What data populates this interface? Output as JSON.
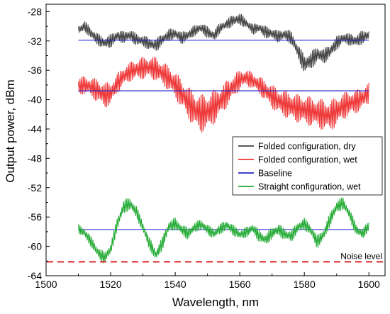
{
  "chart_data": {
    "type": "line",
    "xlabel": "Wavelength, nm",
    "ylabel": "Output power, dBm",
    "xlim": [
      1500,
      1605
    ],
    "ylim": [
      -64,
      -27
    ],
    "xticks": [
      1500,
      1520,
      1540,
      1560,
      1580,
      1600
    ],
    "yticks": [
      -64,
      -60,
      -56,
      -52,
      -48,
      -44,
      -40,
      -36,
      -32,
      -28
    ],
    "grid": false,
    "legend_position": "middle-right",
    "series": [
      {
        "name": "Folded configuration, dry",
        "color": "#404040",
        "x": [
          1510,
          1512,
          1514,
          1516,
          1518,
          1520,
          1522,
          1524,
          1526,
          1528,
          1530,
          1532,
          1534,
          1536,
          1538,
          1540,
          1542,
          1544,
          1546,
          1548,
          1550,
          1552,
          1554,
          1556,
          1558,
          1560,
          1562,
          1564,
          1566,
          1568,
          1570,
          1572,
          1574,
          1576,
          1578,
          1580,
          1582,
          1584,
          1586,
          1588,
          1590,
          1592,
          1594,
          1596,
          1598,
          1600
        ],
        "y": [
          -30.5,
          -30.0,
          -31.0,
          -31.8,
          -32.3,
          -32.0,
          -31.3,
          -31.5,
          -31.2,
          -31.8,
          -32.0,
          -32.4,
          -32.6,
          -31.8,
          -31.2,
          -31.0,
          -31.6,
          -31.2,
          -30.6,
          -30.2,
          -30.8,
          -31.3,
          -30.2,
          -29.7,
          -29.2,
          -29.0,
          -29.6,
          -30.4,
          -30.2,
          -30.8,
          -31.0,
          -31.4,
          -31.1,
          -31.6,
          -33.4,
          -35.2,
          -34.7,
          -33.8,
          -34.1,
          -33.4,
          -32.3,
          -31.6,
          -31.8,
          -32.0,
          -31.5,
          -31.2
        ],
        "amplitude": [
          0.7,
          0.7,
          0.8,
          0.8,
          0.8,
          0.9,
          0.8,
          0.8,
          0.8,
          0.8,
          0.8,
          0.8,
          0.9,
          0.8,
          0.8,
          0.8,
          0.8,
          0.8,
          0.7,
          0.7,
          0.8,
          0.8,
          0.7,
          0.7,
          0.8,
          0.8,
          0.7,
          0.7,
          0.7,
          0.8,
          0.8,
          0.8,
          0.8,
          0.9,
          1.0,
          1.3,
          1.2,
          1.1,
          1.0,
          1.0,
          0.9,
          0.8,
          0.8,
          0.9,
          0.9,
          0.8
        ]
      },
      {
        "name": "Folded configuration, wet",
        "color": "#ee3333",
        "x": [
          1510,
          1512,
          1514,
          1516,
          1518,
          1520,
          1522,
          1524,
          1526,
          1528,
          1530,
          1532,
          1534,
          1536,
          1538,
          1540,
          1542,
          1544,
          1546,
          1548,
          1550,
          1552,
          1554,
          1556,
          1558,
          1560,
          1562,
          1564,
          1566,
          1568,
          1570,
          1572,
          1574,
          1576,
          1578,
          1580,
          1582,
          1584,
          1586,
          1588,
          1590,
          1592,
          1594,
          1596,
          1598,
          1600
        ],
        "y": [
          -38.2,
          -38.0,
          -38.3,
          -38.8,
          -39.4,
          -39.2,
          -37.8,
          -36.8,
          -36.2,
          -35.9,
          -35.7,
          -35.6,
          -35.8,
          -36.4,
          -37.1,
          -38.0,
          -39.2,
          -40.4,
          -41.4,
          -41.9,
          -41.7,
          -41.0,
          -40.2,
          -39.2,
          -38.2,
          -37.3,
          -37.0,
          -37.4,
          -38.0,
          -38.8,
          -39.6,
          -40.2,
          -40.6,
          -40.9,
          -41.2,
          -41.4,
          -41.6,
          -41.8,
          -42.1,
          -42.2,
          -41.6,
          -40.9,
          -40.5,
          -40.3,
          -39.8,
          -39.1
        ],
        "amplitude": [
          1.2,
          1.2,
          1.3,
          1.6,
          1.7,
          1.6,
          1.3,
          1.3,
          1.3,
          1.4,
          1.5,
          1.5,
          1.6,
          1.6,
          1.7,
          1.8,
          2.0,
          2.2,
          2.4,
          2.6,
          2.5,
          2.3,
          2.0,
          1.8,
          1.6,
          1.3,
          1.1,
          1.1,
          1.2,
          1.4,
          1.6,
          1.7,
          1.8,
          1.9,
          1.9,
          2.0,
          2.0,
          2.0,
          2.1,
          2.1,
          2.0,
          1.8,
          1.7,
          1.6,
          1.5,
          1.4
        ]
      },
      {
        "name": "Baseline",
        "color": "#2222cc",
        "x": [
          1510,
          1600
        ],
        "y": [
          -31.9,
          -31.9
        ]
      },
      {
        "name": "",
        "color": "#2222cc",
        "x": [
          1510,
          1600
        ],
        "y": [
          -38.8,
          -38.8
        ]
      },
      {
        "name": "",
        "color": "#4444dd",
        "x": [
          1510,
          1600
        ],
        "y": [
          -57.7,
          -57.7
        ]
      },
      {
        "name": "Straight configuration, wet",
        "color": "#22aa33",
        "x": [
          1510,
          1512,
          1514,
          1516,
          1518,
          1520,
          1522,
          1524,
          1526,
          1528,
          1530,
          1532,
          1534,
          1536,
          1538,
          1540,
          1542,
          1544,
          1546,
          1548,
          1550,
          1552,
          1554,
          1556,
          1558,
          1560,
          1562,
          1564,
          1566,
          1568,
          1570,
          1572,
          1574,
          1576,
          1578,
          1580,
          1582,
          1584,
          1586,
          1588,
          1590,
          1592,
          1594,
          1596,
          1598,
          1600
        ],
        "y": [
          -57.6,
          -58.2,
          -59.4,
          -60.8,
          -61.6,
          -60.4,
          -57.0,
          -54.6,
          -54.2,
          -55.3,
          -57.4,
          -59.6,
          -61.2,
          -59.6,
          -57.3,
          -56.9,
          -57.7,
          -58.3,
          -57.4,
          -57.0,
          -57.7,
          -58.3,
          -57.6,
          -57.1,
          -57.8,
          -58.4,
          -58.1,
          -57.5,
          -58.6,
          -59.1,
          -58.2,
          -57.7,
          -58.4,
          -58.6,
          -57.4,
          -56.9,
          -57.8,
          -59.4,
          -58.4,
          -56.3,
          -54.6,
          -54.1,
          -55.6,
          -57.7,
          -58.3,
          -57.2
        ],
        "amplitude": [
          0.6,
          0.7,
          0.7,
          0.8,
          0.8,
          0.8,
          0.9,
          0.9,
          0.9,
          0.8,
          0.8,
          0.8,
          0.9,
          0.9,
          0.8,
          0.8,
          0.8,
          0.8,
          0.7,
          0.7,
          0.7,
          0.7,
          0.7,
          0.7,
          0.7,
          0.7,
          0.7,
          0.7,
          0.8,
          0.8,
          0.8,
          0.8,
          0.8,
          0.8,
          0.8,
          0.8,
          0.8,
          0.9,
          0.9,
          0.9,
          0.9,
          0.8,
          0.8,
          0.8,
          0.7,
          0.7
        ]
      }
    ],
    "reference_lines": [
      {
        "label": "Noise level",
        "y": -62.1,
        "color": "#dd2222",
        "style": "dashed"
      }
    ]
  }
}
